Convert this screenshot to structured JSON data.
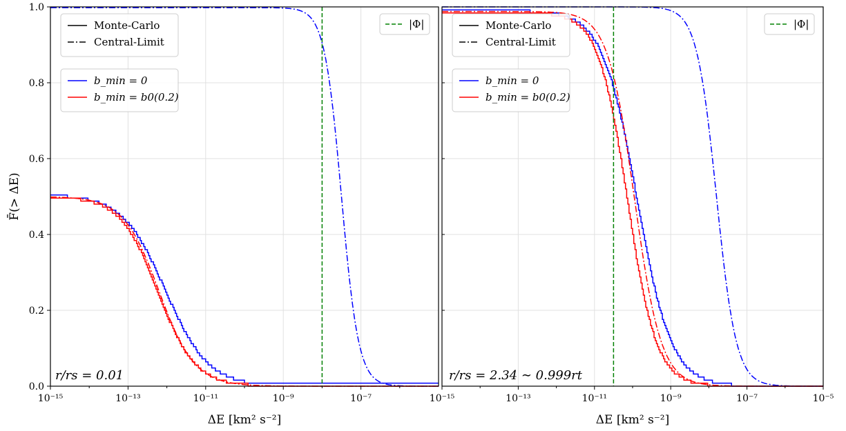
{
  "figure": {
    "ylabel": "F̄(> ΔE)",
    "xlabel": "ΔE [km² s⁻²]"
  },
  "chart_data": [
    {
      "type": "line",
      "panel": "left",
      "annotation": "r/rs = 0.01",
      "xscale": "log",
      "xlim_exp": [
        -15,
        -5
      ],
      "xticks": [
        "10⁻¹⁵",
        "10⁻¹³",
        "10⁻¹¹",
        "10⁻⁹",
        "10⁻⁷"
      ],
      "ylim": [
        0,
        1
      ],
      "yticks": [
        "0.0",
        "0.2",
        "0.4",
        "0.6",
        "0.8",
        "1.0"
      ],
      "grid": true,
      "legend_style": [
        "Monte-Carlo",
        "Central-Limit"
      ],
      "legend_color": [
        "b_min = 0",
        "b_min = b0(0.2)"
      ],
      "legend_phi": "|Φ|",
      "phi_line_exp": -8,
      "series": [
        {
          "name": "b_min = 0",
          "style": "Monte-Carlo",
          "color": "#0000ff",
          "plateau": 0.505,
          "center_exp": -12.05,
          "width": 0.55,
          "floor": 0.006,
          "floor_end_exp": -5
        },
        {
          "name": "b_min = 0",
          "style": "Central-Limit",
          "color": "#0000ff",
          "plateau": 0.998,
          "center_exp": -7.5,
          "width": 0.22,
          "floor": 0.0,
          "floor_end_exp": -5
        },
        {
          "name": "b_min = b0(0.2)",
          "style": "Monte-Carlo",
          "color": "#ff0000",
          "plateau": 0.5,
          "center_exp": -12.25,
          "width": 0.48,
          "floor": 0.0,
          "floor_end_exp": -11.5
        },
        {
          "name": "b_min = b0(0.2)",
          "style": "Central-Limit",
          "color": "#ff0000",
          "plateau": 0.5,
          "center_exp": -12.2,
          "width": 0.46,
          "floor": 0.0,
          "floor_end_exp": -11.5
        }
      ]
    },
    {
      "type": "line",
      "panel": "right",
      "annotation": "r/rs = 2.34 ∼ 0.999rt",
      "xscale": "log",
      "xlim_exp": [
        -15,
        -5
      ],
      "xticks": [
        "10⁻¹⁵",
        "10⁻¹³",
        "10⁻¹¹",
        "10⁻⁹",
        "10⁻⁷",
        "10⁻⁵"
      ],
      "ylim": [
        0,
        1
      ],
      "grid": true,
      "legend_style": [
        "Monte-Carlo",
        "Central-Limit"
      ],
      "legend_color": [
        "b_min = 0",
        "b_min = b0(0.2)"
      ],
      "legend_phi": "|Φ|",
      "phi_line_exp": -10.5,
      "series": [
        {
          "name": "b_min = 0",
          "style": "Monte-Carlo",
          "color": "#0000ff",
          "plateau": 0.99,
          "center_exp": -9.9,
          "width": 0.45,
          "floor": 0.0,
          "floor_end_exp": -5
        },
        {
          "name": "b_min = 0",
          "style": "Central-Limit",
          "color": "#0000ff",
          "plateau": 1.0,
          "center_exp": -7.8,
          "width": 0.26,
          "floor": 0.0,
          "floor_end_exp": -5
        },
        {
          "name": "b_min = b0(0.2)",
          "style": "Monte-Carlo",
          "color": "#ff0000",
          "plateau": 0.985,
          "center_exp": -10.15,
          "width": 0.38,
          "floor": 0.0,
          "floor_end_exp": -9
        },
        {
          "name": "b_min = b0(0.2)",
          "style": "Central-Limit",
          "color": "#ff0000",
          "plateau": 0.988,
          "center_exp": -9.95,
          "width": 0.35,
          "floor": 0.0,
          "floor_end_exp": -9
        }
      ]
    }
  ]
}
